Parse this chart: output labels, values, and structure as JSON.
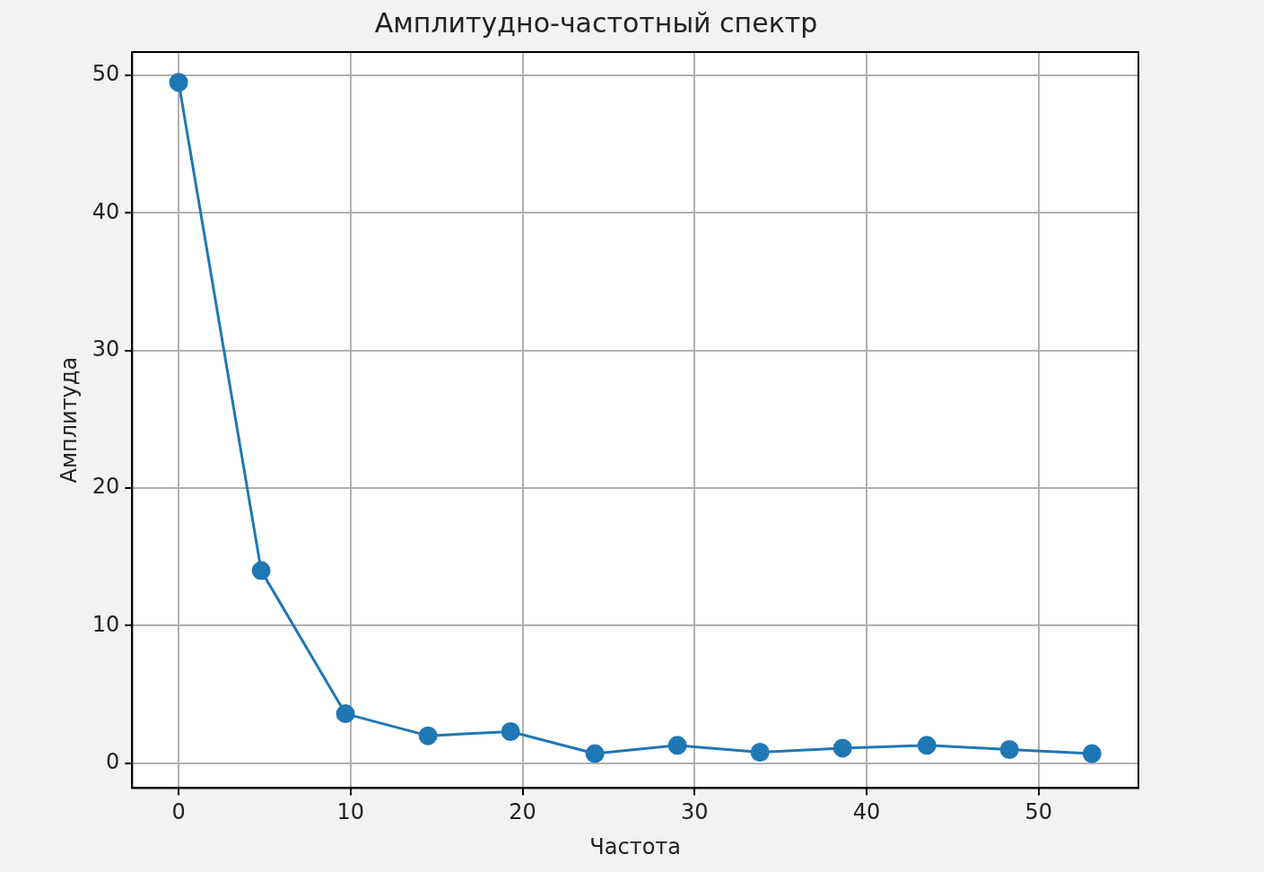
{
  "chart_data": {
    "type": "line",
    "title": "Амплитудно-частотный спектр",
    "xlabel": "Частота",
    "ylabel": "Амплитуда",
    "x": [
      0,
      4.8,
      9.7,
      14.5,
      19.3,
      24.2,
      29.0,
      33.8,
      38.6,
      43.5,
      48.3,
      53.1
    ],
    "series": [
      {
        "color": "#1f77b4",
        "values": [
          49.5,
          14.0,
          3.6,
          2.0,
          2.3,
          0.7,
          1.3,
          0.8,
          1.1,
          1.3,
          1.0,
          0.7
        ]
      }
    ],
    "xlim": [
      -2.7,
      55.8
    ],
    "ylim": [
      -1.8,
      51.7
    ],
    "xticks": [
      0,
      10,
      20,
      30,
      40,
      50
    ],
    "yticks": [
      0,
      10,
      20,
      30,
      40,
      50
    ],
    "grid": true,
    "marker": "circle",
    "line_style": "solid"
  }
}
